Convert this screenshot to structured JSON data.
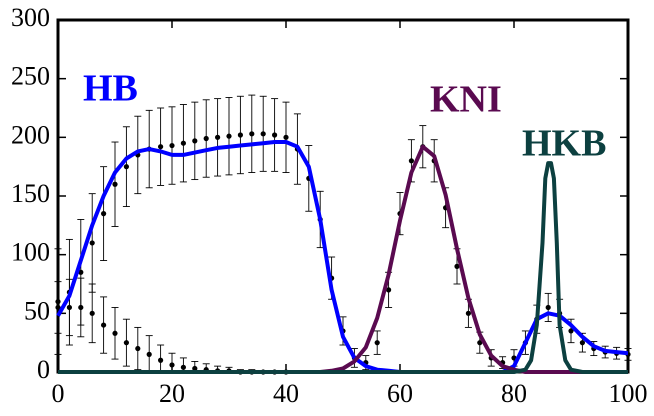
{
  "chart_data": {
    "type": "line",
    "xlim": [
      0,
      100
    ],
    "ylim": [
      0,
      300
    ],
    "xticks": [
      0,
      20,
      40,
      60,
      80,
      100
    ],
    "yticks": [
      0,
      50,
      100,
      150,
      200,
      250,
      300
    ],
    "series": [
      {
        "style": "points",
        "color": "#000000",
        "x": [
          0,
          2,
          4,
          6,
          8,
          10,
          12,
          14,
          16,
          18,
          20,
          22,
          24,
          26,
          28,
          30,
          32,
          34,
          36,
          38,
          40,
          42,
          44,
          46,
          48,
          50,
          52,
          54,
          56,
          58,
          60,
          62,
          64,
          66,
          68,
          70,
          72,
          74,
          76,
          78,
          80,
          82,
          84,
          86,
          88,
          90,
          92,
          94,
          96,
          98,
          100
        ],
        "values": [
          60,
          68,
          85,
          110,
          135,
          160,
          175,
          185,
          190,
          192,
          193,
          195,
          197,
          199,
          200,
          201,
          202,
          203,
          203,
          202,
          200,
          190,
          165,
          130,
          80,
          35,
          12,
          8,
          25,
          70,
          135,
          180,
          192,
          180,
          140,
          90,
          50,
          25,
          12,
          8,
          12,
          25,
          45,
          55,
          50,
          35,
          25,
          20,
          17,
          16,
          15
        ],
        "errors": [
          45,
          45,
          45,
          42,
          40,
          36,
          34,
          33,
          33,
          33,
          33,
          33,
          33,
          33,
          33,
          33,
          33,
          33,
          32,
          31,
          30,
          30,
          28,
          24,
          18,
          12,
          8,
          6,
          10,
          15,
          18,
          18,
          18,
          18,
          17,
          15,
          12,
          9,
          7,
          5,
          7,
          10,
          12,
          12,
          12,
          10,
          8,
          6,
          5,
          5,
          5
        ]
      },
      {
        "style": "points",
        "color": "#000000",
        "x": [
          0,
          2,
          4,
          6,
          8,
          10,
          12,
          14,
          16,
          18,
          20,
          22,
          24,
          26,
          28,
          30,
          32,
          34,
          36,
          38,
          40
        ],
        "values": [
          55,
          55,
          55,
          50,
          40,
          33,
          25,
          20,
          15,
          10,
          6,
          4,
          3,
          2,
          1,
          1,
          0,
          0,
          0,
          0,
          0
        ],
        "errors": [
          22,
          24,
          25,
          25,
          24,
          22,
          20,
          18,
          16,
          13,
          10,
          8,
          6,
          5,
          4,
          3,
          2,
          2,
          1,
          1,
          1
        ]
      },
      {
        "name": "HB",
        "style": "line",
        "color": "#0000ff",
        "x": [
          0,
          2,
          4,
          6,
          8,
          10,
          12,
          14,
          16,
          18,
          20,
          22,
          24,
          26,
          28,
          30,
          32,
          34,
          36,
          38,
          40,
          42,
          44,
          46,
          48,
          50,
          52,
          54,
          56,
          58,
          60,
          62,
          64,
          66,
          68,
          70,
          72,
          74,
          76,
          78,
          80,
          82,
          84,
          86,
          88,
          90,
          92,
          94,
          96,
          98,
          100
        ],
        "values": [
          48,
          65,
          95,
          125,
          150,
          170,
          182,
          188,
          190,
          188,
          185,
          185,
          187,
          189,
          191,
          192,
          193,
          194,
          195,
          196,
          196,
          192,
          175,
          130,
          70,
          30,
          12,
          5,
          2,
          1,
          0,
          0,
          0,
          0,
          0,
          0,
          0,
          0,
          0,
          0,
          5,
          25,
          45,
          50,
          48,
          40,
          30,
          22,
          18,
          17,
          16
        ]
      },
      {
        "name": "KNI",
        "style": "line",
        "color": "#5a0a50",
        "x": [
          0,
          10,
          20,
          30,
          40,
          44,
          46,
          48,
          50,
          52,
          54,
          56,
          58,
          60,
          62,
          64,
          66,
          68,
          70,
          72,
          74,
          76,
          78,
          80,
          82,
          84,
          90,
          100
        ],
        "values": [
          0,
          0,
          0,
          0,
          0,
          0,
          0,
          1,
          3,
          9,
          21,
          46,
          83,
          129,
          170,
          192,
          184,
          151,
          105,
          63,
          32,
          14,
          5,
          2,
          0,
          0,
          0,
          0
        ]
      },
      {
        "name": "HKB",
        "style": "line",
        "color": "#0c4040",
        "x": [
          0,
          20,
          40,
          60,
          80,
          82,
          83,
          84,
          85,
          85.5,
          86,
          86.5,
          87,
          87.5,
          88,
          89,
          90,
          92,
          100
        ],
        "values": [
          0,
          0,
          0,
          0,
          0,
          2,
          10,
          40,
          110,
          165,
          178,
          178,
          165,
          110,
          40,
          10,
          2,
          0,
          0
        ]
      }
    ]
  }
}
